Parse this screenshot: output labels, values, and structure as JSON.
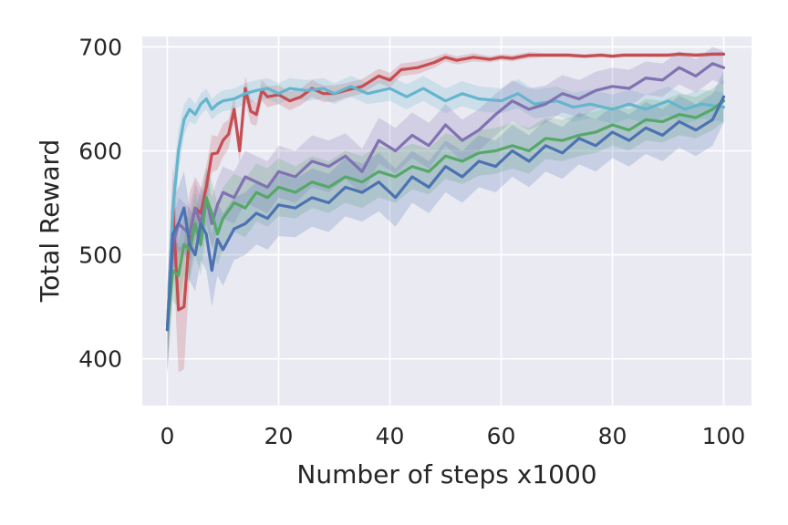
{
  "chart_data": {
    "type": "line",
    "title": "",
    "xlabel": "Number of steps x1000",
    "ylabel": "Total Reward",
    "xlim": [
      -4.5,
      105
    ],
    "ylim": [
      355,
      710
    ],
    "xticks": [
      0,
      20,
      40,
      60,
      80,
      100
    ],
    "yticks": [
      400,
      500,
      600,
      700
    ],
    "xtick_labels": [
      "0",
      "20",
      "40",
      "60",
      "80",
      "100"
    ],
    "ytick_labels": [
      "400",
      "500",
      "600",
      "700"
    ],
    "grid": true,
    "legend": "none",
    "background_color": "#eaeaf2",
    "grid_color": "#ffffff",
    "shaded_band": "confidence interval around each line",
    "series": [
      {
        "color": "#c44e52",
        "x": [
          0,
          1,
          2,
          3,
          4,
          5,
          6,
          7,
          8,
          9,
          10,
          11,
          12,
          13,
          14,
          15,
          16,
          17,
          18,
          20,
          22,
          24,
          26,
          28,
          30,
          32,
          35,
          38,
          40,
          42,
          45,
          48,
          50,
          52,
          55,
          58,
          60,
          62,
          65,
          68,
          70,
          72,
          75,
          78,
          80,
          82,
          85,
          88,
          90,
          92,
          95,
          98,
          100
        ],
        "y": [
          428,
          545,
          447,
          450,
          520,
          545,
          540,
          565,
          597,
          598,
          610,
          616,
          640,
          600,
          660,
          638,
          635,
          658,
          652,
          654,
          648,
          652,
          660,
          655,
          655,
          658,
          662,
          672,
          668,
          678,
          680,
          685,
          690,
          687,
          690,
          688,
          690,
          689,
          692,
          692,
          692,
          692,
          691,
          692,
          691,
          692,
          692,
          692,
          692,
          693,
          692,
          693,
          693
        ],
        "band": [
          40,
          40,
          60,
          60,
          40,
          30,
          25,
          20,
          18,
          16,
          16,
          14,
          12,
          12,
          12,
          12,
          11,
          10,
          10,
          9,
          9,
          8,
          8,
          8,
          8,
          7,
          7,
          7,
          7,
          6,
          6,
          5,
          4,
          4,
          4,
          3,
          3,
          3,
          3,
          2,
          2,
          2,
          2,
          2,
          2,
          2,
          2,
          2,
          2,
          2,
          2,
          2,
          2
        ]
      },
      {
        "color": "#64b5cd",
        "x": [
          0,
          1,
          2,
          3,
          4,
          5,
          6,
          7,
          8,
          9,
          10,
          12,
          14,
          16,
          18,
          20,
          22,
          25,
          28,
          30,
          33,
          36,
          40,
          43,
          46,
          50,
          53,
          56,
          60,
          63,
          66,
          70,
          73,
          76,
          80,
          83,
          86,
          90,
          93,
          96,
          100
        ],
        "y": [
          428,
          545,
          600,
          630,
          640,
          635,
          645,
          650,
          640,
          645,
          648,
          650,
          655,
          658,
          660,
          655,
          660,
          658,
          660,
          655,
          662,
          655,
          660,
          652,
          660,
          648,
          655,
          650,
          648,
          655,
          645,
          648,
          642,
          645,
          640,
          645,
          640,
          648,
          640,
          645,
          642
        ],
        "band": [
          40,
          30,
          20,
          15,
          12,
          10,
          10,
          10,
          10,
          10,
          10,
          10,
          10,
          10,
          10,
          10,
          10,
          10,
          10,
          10,
          10,
          10,
          12,
          12,
          12,
          12,
          12,
          12,
          12,
          14,
          14,
          14,
          14,
          14,
          14,
          14,
          14,
          14,
          14,
          14,
          14
        ]
      },
      {
        "color": "#8172b2",
        "x": [
          0,
          1,
          2,
          3,
          4,
          5,
          6,
          7,
          8,
          9,
          10,
          12,
          14,
          16,
          18,
          20,
          23,
          26,
          29,
          32,
          35,
          38,
          41,
          44,
          47,
          50,
          53,
          56,
          59,
          62,
          65,
          68,
          71,
          74,
          77,
          80,
          83,
          86,
          89,
          92,
          95,
          98,
          100
        ],
        "y": [
          428,
          510,
          530,
          525,
          520,
          545,
          530,
          555,
          530,
          548,
          560,
          555,
          575,
          570,
          565,
          580,
          575,
          590,
          585,
          595,
          580,
          610,
          600,
          615,
          605,
          625,
          610,
          620,
          635,
          648,
          640,
          645,
          655,
          650,
          658,
          662,
          660,
          670,
          668,
          680,
          672,
          684,
          680
        ],
        "band": [
          30,
          25,
          25,
          25,
          25,
          25,
          25,
          25,
          25,
          25,
          25,
          25,
          25,
          25,
          25,
          25,
          25,
          25,
          25,
          22,
          22,
          22,
          22,
          22,
          22,
          20,
          20,
          20,
          20,
          20,
          20,
          18,
          18,
          18,
          18,
          18,
          18,
          16,
          16,
          16,
          16,
          16,
          16
        ]
      },
      {
        "color": "#55a868",
        "x": [
          0,
          1,
          2,
          3,
          4,
          5,
          6,
          7,
          8,
          9,
          10,
          12,
          14,
          16,
          18,
          20,
          23,
          26,
          29,
          32,
          35,
          38,
          41,
          44,
          47,
          50,
          53,
          56,
          59,
          62,
          65,
          68,
          71,
          74,
          77,
          80,
          83,
          86,
          89,
          92,
          95,
          98,
          100
        ],
        "y": [
          428,
          485,
          480,
          510,
          505,
          530,
          510,
          555,
          540,
          520,
          535,
          550,
          545,
          560,
          555,
          565,
          560,
          570,
          565,
          575,
          570,
          580,
          575,
          585,
          580,
          595,
          590,
          598,
          600,
          605,
          600,
          612,
          610,
          615,
          618,
          625,
          620,
          630,
          628,
          635,
          632,
          640,
          648
        ],
        "band": [
          40,
          30,
          30,
          30,
          30,
          30,
          30,
          30,
          30,
          30,
          30,
          28,
          28,
          28,
          28,
          28,
          25,
          25,
          25,
          25,
          25,
          25,
          25,
          22,
          22,
          22,
          22,
          22,
          22,
          22,
          22,
          20,
          20,
          20,
          20,
          20,
          20,
          20,
          20,
          20,
          20,
          20,
          20
        ]
      },
      {
        "color": "#4c72b0",
        "x": [
          0,
          1,
          2,
          3,
          4,
          5,
          6,
          7,
          8,
          9,
          10,
          12,
          14,
          16,
          18,
          20,
          23,
          26,
          29,
          32,
          35,
          38,
          41,
          44,
          47,
          50,
          53,
          56,
          59,
          62,
          65,
          68,
          71,
          74,
          77,
          80,
          83,
          86,
          89,
          92,
          95,
          98,
          100
        ],
        "y": [
          428,
          520,
          530,
          545,
          510,
          500,
          530,
          520,
          485,
          515,
          505,
          525,
          530,
          540,
          535,
          548,
          545,
          555,
          550,
          565,
          560,
          570,
          555,
          575,
          565,
          585,
          575,
          590,
          585,
          600,
          590,
          605,
          598,
          612,
          605,
          618,
          610,
          622,
          615,
          628,
          620,
          630,
          652
        ],
        "band": [
          45,
          35,
          35,
          35,
          35,
          35,
          35,
          35,
          35,
          35,
          35,
          30,
          30,
          30,
          30,
          30,
          28,
          28,
          28,
          28,
          28,
          28,
          28,
          25,
          25,
          25,
          25,
          25,
          25,
          25,
          25,
          25,
          25,
          25,
          25,
          25,
          25,
          25,
          25,
          25,
          25,
          25,
          25
        ]
      }
    ]
  }
}
